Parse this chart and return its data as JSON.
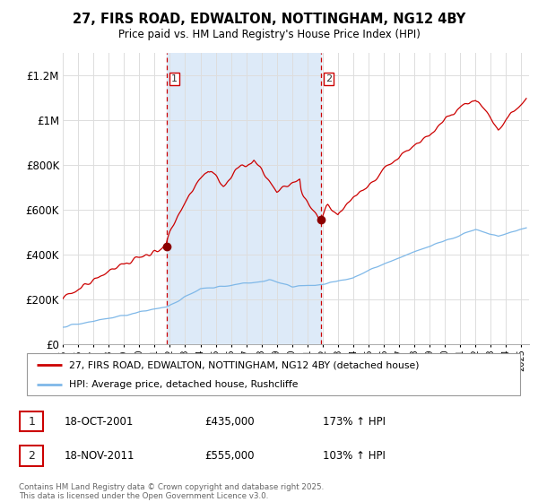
{
  "title": "27, FIRS ROAD, EDWALTON, NOTTINGHAM, NG12 4BY",
  "subtitle": "Price paid vs. HM Land Registry's House Price Index (HPI)",
  "ylim": [
    0,
    1300000
  ],
  "yticks": [
    0,
    200000,
    400000,
    600000,
    800000,
    1000000,
    1200000
  ],
  "ytick_labels": [
    "£0",
    "£200K",
    "£400K",
    "£600K",
    "£800K",
    "£1M",
    "£1.2M"
  ],
  "xlim_start": 1995.0,
  "xlim_end": 2025.5,
  "transaction1_year": 2001.79,
  "transaction1_price": 435000,
  "transaction2_year": 2011.88,
  "transaction2_price": 555000,
  "shade_color": "#ddeaf8",
  "line1_color": "#cc0000",
  "line2_color": "#7fb8e8",
  "vline_color": "#cc0000",
  "grid_color": "#dddddd",
  "background_color": "#ffffff",
  "legend1_label": "27, FIRS ROAD, EDWALTON, NOTTINGHAM, NG12 4BY (detached house)",
  "legend2_label": "HPI: Average price, detached house, Rushcliffe",
  "footnote": "Contains HM Land Registry data © Crown copyright and database right 2025.\nThis data is licensed under the Open Government Licence v3.0.",
  "table_rows": [
    [
      "1",
      "18-OCT-2001",
      "£435,000",
      "173% ↑ HPI"
    ],
    [
      "2",
      "18-NOV-2011",
      "£555,000",
      "103% ↑ HPI"
    ]
  ]
}
